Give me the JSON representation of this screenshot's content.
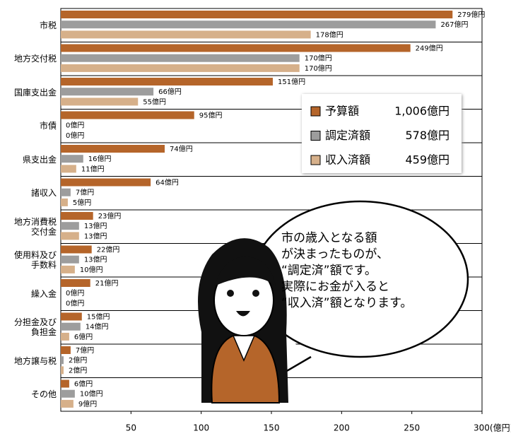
{
  "chart_data": {
    "type": "hbar",
    "categories": [
      "市税",
      "地方交付税",
      "国庫支出金",
      "市債",
      "県支出金",
      "諸収入",
      "地方消費税\n交付金",
      "使用料及び\n手数料",
      "繰入金",
      "分担金及び\n負担金",
      "地方譲与税",
      "その他"
    ],
    "series": [
      {
        "name": "予算額",
        "color": "#b5652a",
        "total_label": "1,006億円",
        "values": [
          279,
          249,
          151,
          95,
          74,
          64,
          23,
          22,
          21,
          15,
          7,
          6
        ],
        "value_labels": [
          "279億円",
          "249億円",
          "151億円",
          "95億円",
          "74億円",
          "64億円",
          "23億円",
          "22億円",
          "21億円",
          "15億円",
          "7億円",
          "6億円"
        ]
      },
      {
        "name": "調定済額",
        "color": "#9d9d9d",
        "total_label": "578億円",
        "values": [
          267,
          170,
          66,
          0,
          16,
          7,
          13,
          13,
          0,
          14,
          2,
          10
        ],
        "value_labels": [
          "267億円",
          "170億円",
          "66億円",
          "0億円",
          "16億円",
          "7億円",
          "13億円",
          "13億円",
          "0億円",
          "14億円",
          "2億円",
          "10億円"
        ]
      },
      {
        "name": "収入済額",
        "color": "#d6b08a",
        "total_label": "459億円",
        "values": [
          178,
          170,
          55,
          0,
          11,
          5,
          13,
          10,
          0,
          6,
          2,
          9
        ],
        "value_labels": [
          "178億円",
          "170億円",
          "55億円",
          "0億円",
          "11億円",
          "5億円",
          "13億円",
          "10億円",
          "0億円",
          "6億円",
          "2億円",
          "9億円"
        ]
      }
    ],
    "xlim": [
      0,
      300
    ],
    "xticks": [
      50,
      100,
      150,
      200,
      250,
      {
        "value": 300,
        "label": "300(億円)"
      }
    ],
    "annotation": "市の歳入となる額\nが決まったものが、\n“調定済”額です。\n実際にお金が入ると\n“収入済”額となります。"
  }
}
